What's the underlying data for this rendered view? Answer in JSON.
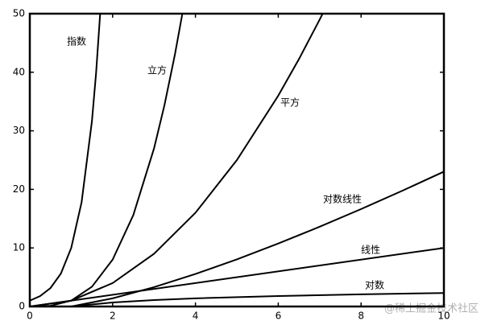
{
  "chart_data": {
    "type": "line",
    "xlim": [
      0,
      10
    ],
    "xticks": [
      0,
      2,
      4,
      6,
      8,
      10
    ],
    "ylim": [
      0,
      50
    ],
    "yticks": [
      0,
      10,
      20,
      30,
      40,
      50
    ],
    "series": [
      {
        "name": "指数",
        "color": "#000000",
        "x": [
          0,
          0.25,
          0.5,
          0.75,
          1,
          1.25,
          1.5,
          1.6,
          1.7
        ],
        "values": [
          1,
          1.78,
          3.16,
          5.62,
          10,
          17.78,
          31.62,
          39.81,
          50.12
        ]
      },
      {
        "name": "立方",
        "color": "#000000",
        "x": [
          0,
          0.5,
          1,
          1.5,
          2,
          2.5,
          3,
          3.25,
          3.5,
          3.68
        ],
        "values": [
          0,
          0.125,
          1,
          3.375,
          8,
          15.625,
          27,
          34.33,
          42.875,
          49.84
        ]
      },
      {
        "name": "平方",
        "color": "#000000",
        "x": [
          0,
          1,
          2,
          3,
          4,
          5,
          6,
          6.5,
          7,
          7.07
        ],
        "values": [
          0,
          1,
          4,
          9,
          16,
          25,
          36,
          42.25,
          49,
          49.98
        ]
      },
      {
        "name": "对数线性",
        "color": "#000000",
        "x": [
          1,
          2,
          3,
          4,
          5,
          6,
          7,
          8,
          9,
          10
        ],
        "values": [
          0,
          1.39,
          3.3,
          5.55,
          8.05,
          10.75,
          13.62,
          16.64,
          19.78,
          23.03
        ]
      },
      {
        "name": "线性",
        "color": "#000000",
        "x": [
          0,
          10
        ],
        "values": [
          0,
          10
        ]
      },
      {
        "name": "对数",
        "color": "#000000",
        "x": [
          1,
          2,
          3,
          4,
          6,
          8,
          10
        ],
        "values": [
          0,
          0.69,
          1.1,
          1.39,
          1.79,
          2.08,
          2.3
        ]
      }
    ]
  },
  "watermark": "@稀土掘金技术社区"
}
